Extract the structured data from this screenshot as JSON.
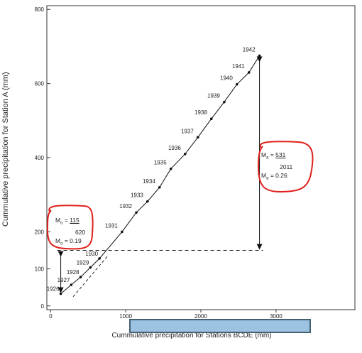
{
  "chart_data": {
    "type": "line",
    "title": "",
    "xlabel": "Cummulative precipitation for Stations BCDE (mm)",
    "ylabel": "Cummulative precipitation for Station A (mm)",
    "xlim": [
      -50,
      4050
    ],
    "ylim": [
      -10,
      810
    ],
    "x_ticks": [
      "0",
      "1000",
      "2000",
      "3000"
    ],
    "y_ticks": [
      "0",
      "100",
      "200",
      "400",
      "600",
      "800"
    ],
    "grid": false,
    "series": [
      {
        "points": [
          {
            "label": "1926",
            "x": 135,
            "y": 33
          },
          {
            "label": "1927",
            "x": 275,
            "y": 57
          },
          {
            "label": "1928",
            "x": 400,
            "y": 78
          },
          {
            "label": "1929",
            "x": 530,
            "y": 104
          },
          {
            "label": "1930",
            "x": 650,
            "y": 128
          },
          {
            "label": "1931",
            "x": 950,
            "y": 200
          },
          {
            "label": "1932",
            "x": 1140,
            "y": 252
          },
          {
            "label": "1933",
            "x": 1290,
            "y": 282
          },
          {
            "label": "1934",
            "x": 1450,
            "y": 320
          },
          {
            "label": "1935",
            "x": 1600,
            "y": 370
          },
          {
            "label": "1936",
            "x": 1790,
            "y": 410
          },
          {
            "label": "1937",
            "x": 1960,
            "y": 455
          },
          {
            "label": "1938",
            "x": 2140,
            "y": 505
          },
          {
            "label": "1939",
            "x": 2310,
            "y": 550
          },
          {
            "label": "1940",
            "x": 2480,
            "y": 598
          },
          {
            "label": "1941",
            "x": 2640,
            "y": 630
          },
          {
            "label": "1942",
            "x": 2780,
            "y": 675
          }
        ]
      }
    ],
    "annotations": {
      "left": {
        "m_label": "M",
        "m_sub": "o",
        "eq": "=",
        "num": "115",
        "den": "620",
        "value": "0.19"
      },
      "right": {
        "m_label": "M",
        "m_sub": "a",
        "eq": "=",
        "num": "531",
        "den": "2011",
        "value": "0.26"
      }
    },
    "dashed_horizontal_y": 150,
    "left_arrow_range": [
      33,
      150
    ],
    "right_arrow_range": [
      150,
      675
    ]
  }
}
